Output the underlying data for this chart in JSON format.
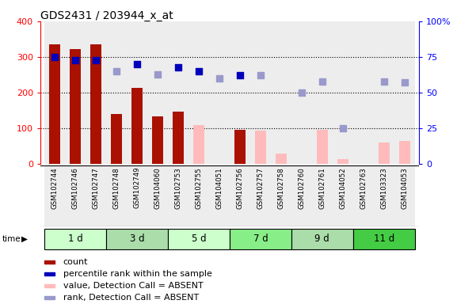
{
  "title": "GDS2431 / 203944_x_at",
  "samples": [
    "GSM102744",
    "GSM102746",
    "GSM102747",
    "GSM102748",
    "GSM102749",
    "GSM104060",
    "GSM102753",
    "GSM102755",
    "GSM104051",
    "GSM102756",
    "GSM102757",
    "GSM102758",
    "GSM102760",
    "GSM102761",
    "GSM104052",
    "GSM102763",
    "GSM103323",
    "GSM104053"
  ],
  "time_groups": [
    {
      "label": "1 d",
      "start": 0,
      "end": 3,
      "color": "#ccffcc"
    },
    {
      "label": "3 d",
      "start": 3,
      "end": 6,
      "color": "#aaddaa"
    },
    {
      "label": "5 d",
      "start": 6,
      "end": 9,
      "color": "#ccffcc"
    },
    {
      "label": "7 d",
      "start": 9,
      "end": 12,
      "color": "#88ee88"
    },
    {
      "label": "9 d",
      "start": 12,
      "end": 15,
      "color": "#aaddaa"
    },
    {
      "label": "11 d",
      "start": 15,
      "end": 18,
      "color": "#44cc44"
    }
  ],
  "count_present": [
    335,
    322,
    336,
    141,
    213,
    133,
    146,
    null,
    null,
    97,
    null,
    null,
    null,
    null,
    null,
    null,
    null,
    null
  ],
  "count_absent": [
    null,
    null,
    null,
    null,
    null,
    null,
    null,
    110,
    null,
    null,
    93,
    30,
    null,
    95,
    15,
    null,
    60,
    65
  ],
  "rank_present": [
    75,
    73,
    73,
    null,
    70,
    null,
    68,
    65,
    null,
    62,
    null,
    null,
    null,
    null,
    null,
    null,
    null,
    null
  ],
  "rank_absent": [
    null,
    null,
    null,
    65,
    null,
    63,
    null,
    null,
    60,
    null,
    62,
    null,
    50,
    58,
    25,
    null,
    58,
    57
  ],
  "ylim_left": [
    0,
    400
  ],
  "ylim_right": [
    0,
    100
  ],
  "yticks_left": [
    0,
    100,
    200,
    300,
    400
  ],
  "yticks_right": [
    0,
    25,
    50,
    75,
    100
  ],
  "yticklabels_right": [
    "0",
    "25",
    "50",
    "75",
    "100%"
  ],
  "bar_color_present": "#aa1100",
  "bar_color_absent": "#ffbbbb",
  "dot_color_present": "#0000bb",
  "dot_color_absent": "#9999cc",
  "col_bg_color": "#cccccc",
  "plot_bg": "#ffffff",
  "legend_items": [
    {
      "color": "#aa1100",
      "label": "count"
    },
    {
      "color": "#0000bb",
      "label": "percentile rank within the sample"
    },
    {
      "color": "#ffbbbb",
      "label": "value, Detection Call = ABSENT"
    },
    {
      "color": "#9999cc",
      "label": "rank, Detection Call = ABSENT"
    }
  ]
}
